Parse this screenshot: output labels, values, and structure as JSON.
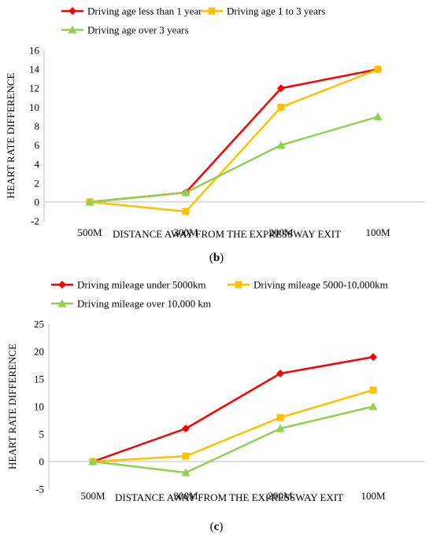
{
  "chart_data": [
    {
      "type": "line",
      "panel_label": "b",
      "categories": [
        "500M",
        "300M",
        "200M",
        "100M"
      ],
      "xlabel": "DISTANCE AWAY FROM THE EXPRESSWAY EXIT",
      "ylabel": "HEART RATE DIFFERENCE",
      "ylim": [
        -2,
        16
      ],
      "yticks": [
        -2,
        0,
        2,
        4,
        6,
        8,
        10,
        12,
        14,
        16
      ],
      "grid": false,
      "legend_position": "top",
      "series": [
        {
          "name": "Driving age less than 1 year",
          "color": "#ff0000",
          "marker": "diamond",
          "values": [
            0,
            1,
            12,
            14
          ]
        },
        {
          "name": "Driving age 1 to 3 years",
          "color": "#ffc000",
          "marker": "square",
          "values": [
            0,
            -1,
            10,
            14
          ]
        },
        {
          "name": "Driving age over 3 years",
          "color": "#92d050",
          "marker": "triangle",
          "values": [
            0,
            1,
            6,
            9
          ]
        }
      ]
    },
    {
      "type": "line",
      "panel_label": "c",
      "categories": [
        "500M",
        "300M",
        "200M",
        "100M"
      ],
      "xlabel": "DISTANCE AWAY FROM THE EXPRESSWAY EXIT",
      "ylabel": "HEART RATE DIFFERENCE",
      "ylim": [
        -5,
        25
      ],
      "yticks": [
        -5,
        0,
        5,
        10,
        15,
        20,
        25
      ],
      "grid": false,
      "legend_position": "top",
      "series": [
        {
          "name": "Driving mileage under 5000km",
          "color": "#ff0000",
          "marker": "diamond",
          "values": [
            0,
            6,
            16,
            19
          ]
        },
        {
          "name": "Driving mileage 5000-10,000km",
          "color": "#ffc000",
          "marker": "square",
          "values": [
            0,
            1,
            8,
            13
          ]
        },
        {
          "name": "Driving mileage over 10,000 km",
          "color": "#92d050",
          "marker": "triangle",
          "values": [
            0,
            -2,
            6,
            10
          ]
        }
      ]
    }
  ]
}
